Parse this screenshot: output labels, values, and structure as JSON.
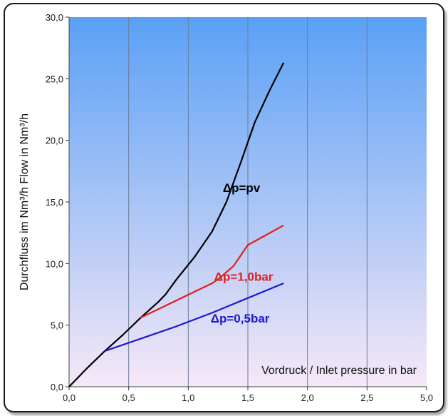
{
  "chart_data": {
    "type": "line",
    "title": "",
    "xlabel": "Vordruck / Inlet pressure in bar",
    "ylabel": "Durchfluss im Nm³/h  Flow in Nm³/h",
    "xlim": [
      0,
      5
    ],
    "ylim": [
      0,
      30
    ],
    "x_ticks": [
      "0,0",
      "0,5",
      "1,0",
      "1,5",
      "2,0",
      "2,5",
      "5,0"
    ],
    "y_ticks": [
      "0,0",
      "5,0",
      "10,0",
      "15,0",
      "20,0",
      "25,0",
      "30,0"
    ],
    "grid": "vertical",
    "background_gradient": [
      "#5aa0f5",
      "#f6e8f7"
    ],
    "series": [
      {
        "name": "Δp=pv",
        "color": "#000000",
        "points": [
          [
            0,
            0
          ],
          [
            0.25,
            1.5
          ],
          [
            0.5,
            2.9
          ],
          [
            0.75,
            4.2
          ],
          [
            1.0,
            5.6
          ],
          [
            1.25,
            6.9
          ],
          [
            1.35,
            7.5
          ],
          [
            1.5,
            8.7
          ],
          [
            1.75,
            10.5
          ],
          [
            2.0,
            12.6
          ],
          [
            2.2,
            15.0
          ],
          [
            2.4,
            18.2
          ],
          [
            2.6,
            21.5
          ],
          [
            2.8,
            24.0
          ],
          [
            3.0,
            26.3
          ]
        ]
      },
      {
        "name": "Δp=1,0bar",
        "color": "#e0201c",
        "points": [
          [
            1.0,
            5.6
          ],
          [
            1.5,
            7.0
          ],
          [
            2.0,
            8.4
          ],
          [
            2.1,
            8.8
          ],
          [
            2.3,
            9.8
          ],
          [
            2.5,
            11.5
          ],
          [
            3.0,
            13.1
          ]
        ]
      },
      {
        "name": "Δp=0,5bar",
        "color": "#1a1ad0",
        "points": [
          [
            0.5,
            2.9
          ],
          [
            1.0,
            3.9
          ],
          [
            1.5,
            4.9
          ],
          [
            2.0,
            6.0
          ],
          [
            2.5,
            7.2
          ],
          [
            3.0,
            8.4
          ]
        ]
      }
    ]
  }
}
